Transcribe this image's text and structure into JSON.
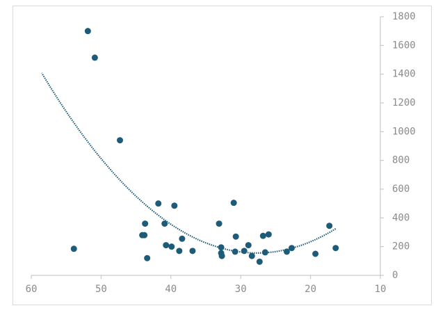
{
  "chart_data": {
    "type": "scatter",
    "color": "#1d5b79",
    "x": [
      51.9,
      50.9,
      47.3,
      53.9,
      41.8,
      39.5,
      43.7,
      44.1,
      43.8,
      40.9,
      43.4,
      40.7,
      39.9,
      38.4,
      38.8,
      36.9,
      33.1,
      32.8,
      32.8,
      32.7,
      31.0,
      30.7,
      30.8,
      29.5,
      28.9,
      28.4,
      27.3,
      26.8,
      26.0,
      26.5,
      23.4,
      22.7,
      19.3,
      17.3,
      16.4
    ],
    "values": [
      1700,
      1515,
      940,
      185,
      500,
      485,
      360,
      280,
      280,
      360,
      120,
      210,
      200,
      255,
      170,
      170,
      360,
      195,
      155,
      135,
      505,
      270,
      165,
      170,
      210,
      135,
      95,
      275,
      285,
      160,
      165,
      190,
      150,
      345,
      190
    ],
    "xlim": [
      60,
      10
    ],
    "xticks": [
      60,
      50,
      40,
      30,
      20,
      10
    ],
    "ylim": [
      0,
      1800
    ],
    "yticks": [
      0,
      200,
      400,
      600,
      800,
      1000,
      1200,
      1400,
      1600,
      1800
    ],
    "y_axis_side": "right",
    "trendline": {
      "kind": "polynomial",
      "order": 2,
      "style": "dotted",
      "backward_forecast": 4.6
    }
  }
}
